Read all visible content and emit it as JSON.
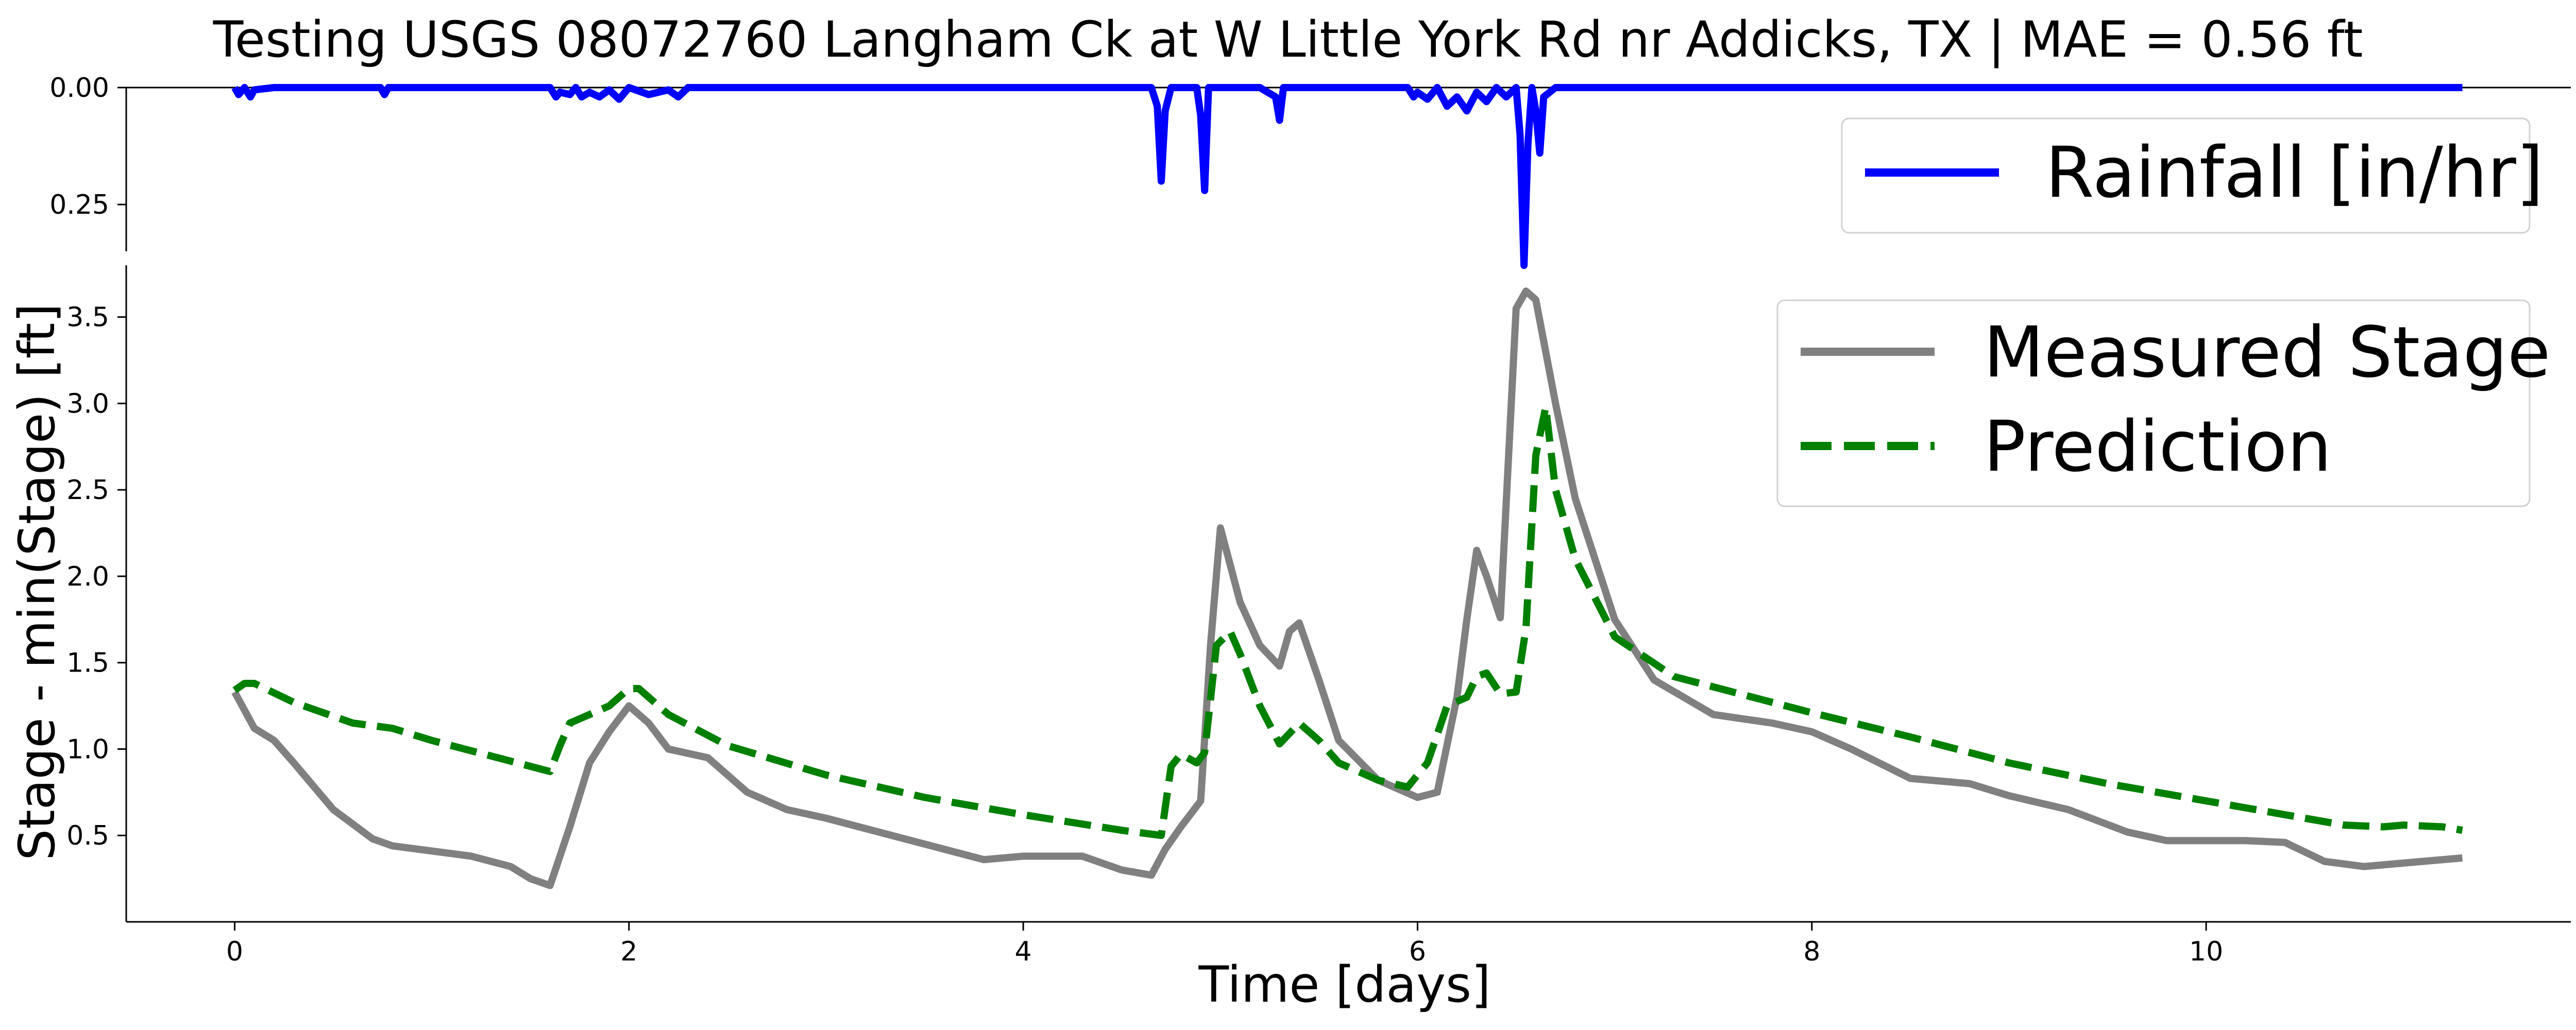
{
  "chart_data": {
    "title": "Testing USGS 08072760 Langham Ck at W Little York Rd nr Addicks, TX | MAE = 0.56 ft",
    "panels": [
      {
        "type": "line",
        "ylim": [
          0.35,
          0.0
        ],
        "inverted": true,
        "yticks": [
          0.0,
          0.25
        ],
        "ytick_labels": [
          "0.00",
          "0.25"
        ],
        "ylabel": "",
        "legend": "top-right",
        "series": [
          {
            "name": "Rainfall [in/hr]",
            "color": "#0000ff",
            "style": "solid",
            "x": [
              0.0,
              0.02,
              0.03,
              0.05,
              0.08,
              0.1,
              0.2,
              0.5,
              0.74,
              0.76,
              0.78,
              1.0,
              1.5,
              1.6,
              1.63,
              1.65,
              1.7,
              1.73,
              1.76,
              1.8,
              1.85,
              1.9,
              1.95,
              2.0,
              2.1,
              2.2,
              2.25,
              2.3,
              2.5,
              3.0,
              4.0,
              4.65,
              4.68,
              4.7,
              4.72,
              4.75,
              4.88,
              4.9,
              4.92,
              4.94,
              5.0,
              5.2,
              5.28,
              5.3,
              5.32,
              5.5,
              5.95,
              5.98,
              6.0,
              6.05,
              6.1,
              6.15,
              6.2,
              6.25,
              6.3,
              6.35,
              6.4,
              6.45,
              6.5,
              6.52,
              6.54,
              6.56,
              6.58,
              6.6,
              6.62,
              6.64,
              6.7,
              7.0,
              8.0,
              9.0,
              10.0,
              11.0,
              11.3
            ],
            "y": [
              0.0,
              0.015,
              0.01,
              0.0,
              0.02,
              0.005,
              0.0,
              0.0,
              0.0,
              0.015,
              0.0,
              0.0,
              0.0,
              0.0,
              0.02,
              0.01,
              0.015,
              0.0,
              0.02,
              0.01,
              0.02,
              0.005,
              0.025,
              0.0,
              0.015,
              0.005,
              0.02,
              0.0,
              0.0,
              0.0,
              0.0,
              0.0,
              0.04,
              0.2,
              0.05,
              0.0,
              0.0,
              0.06,
              0.22,
              0.0,
              0.0,
              0.0,
              0.02,
              0.07,
              0.0,
              0.0,
              0.0,
              0.02,
              0.01,
              0.025,
              0.0,
              0.04,
              0.02,
              0.05,
              0.01,
              0.03,
              0.0,
              0.02,
              0.0,
              0.1,
              0.38,
              0.12,
              0.0,
              0.05,
              0.14,
              0.02,
              0.0,
              0.0,
              0.0,
              0.0,
              0.0,
              0.0,
              0.0
            ]
          }
        ]
      },
      {
        "type": "line",
        "ylim": [
          0.0,
          3.8
        ],
        "yticks": [
          0.5,
          1.0,
          1.5,
          2.0,
          2.5,
          3.0,
          3.5
        ],
        "ytick_labels": [
          "0.5",
          "1.0",
          "1.5",
          "2.0",
          "2.5",
          "3.0",
          "3.5"
        ],
        "ylabel": "Stage - min(Stage) [ft]",
        "xlabel": "Time [days]",
        "xlim": [
          -0.55,
          11.85
        ],
        "xticks": [
          0,
          2,
          4,
          6,
          8,
          10
        ],
        "xtick_labels": [
          "0",
          "2",
          "4",
          "6",
          "8",
          "10"
        ],
        "legend": "top-right",
        "series": [
          {
            "name": "Measured Stage",
            "color": "#808080",
            "style": "solid",
            "x": [
              0.0,
              0.1,
              0.2,
              0.3,
              0.5,
              0.7,
              0.8,
              1.0,
              1.2,
              1.4,
              1.5,
              1.6,
              1.7,
              1.8,
              1.9,
              2.0,
              2.1,
              2.2,
              2.4,
              2.6,
              2.8,
              3.0,
              3.5,
              3.8,
              4.0,
              4.3,
              4.5,
              4.65,
              4.72,
              4.8,
              4.9,
              4.95,
              5.0,
              5.1,
              5.2,
              5.3,
              5.35,
              5.4,
              5.5,
              5.6,
              5.8,
              6.0,
              6.1,
              6.2,
              6.25,
              6.3,
              6.35,
              6.42,
              6.5,
              6.55,
              6.6,
              6.65,
              6.7,
              6.8,
              7.0,
              7.2,
              7.5,
              7.8,
              8.0,
              8.2,
              8.5,
              8.8,
              9.0,
              9.3,
              9.6,
              9.8,
              10.0,
              10.2,
              10.4,
              10.6,
              10.8,
              11.0,
              11.3
            ],
            "y": [
              1.33,
              1.12,
              1.05,
              0.92,
              0.65,
              0.48,
              0.44,
              0.41,
              0.38,
              0.32,
              0.25,
              0.21,
              0.55,
              0.92,
              1.1,
              1.25,
              1.15,
              1.0,
              0.95,
              0.75,
              0.65,
              0.6,
              0.45,
              0.36,
              0.38,
              0.38,
              0.3,
              0.27,
              0.42,
              0.55,
              0.7,
              1.6,
              2.28,
              1.85,
              1.6,
              1.48,
              1.68,
              1.73,
              1.4,
              1.05,
              0.82,
              0.72,
              0.75,
              1.3,
              1.75,
              2.15,
              2.0,
              1.76,
              3.55,
              3.65,
              3.6,
              3.3,
              3.0,
              2.45,
              1.75,
              1.4,
              1.2,
              1.15,
              1.1,
              1.0,
              0.83,
              0.8,
              0.73,
              0.65,
              0.52,
              0.47,
              0.47,
              0.47,
              0.46,
              0.35,
              0.32,
              0.34,
              0.37
            ]
          },
          {
            "name": "Prediction",
            "color": "#008000",
            "style": "dashed",
            "x": [
              0.0,
              0.05,
              0.1,
              0.3,
              0.6,
              0.8,
              1.0,
              1.3,
              1.6,
              1.65,
              1.7,
              1.8,
              1.9,
              2.0,
              2.05,
              2.1,
              2.2,
              2.5,
              3.0,
              3.5,
              4.0,
              4.5,
              4.7,
              4.75,
              4.8,
              4.88,
              4.92,
              4.98,
              5.05,
              5.1,
              5.2,
              5.3,
              5.4,
              5.5,
              5.6,
              5.8,
              5.95,
              6.05,
              6.15,
              6.25,
              6.3,
              6.35,
              6.42,
              6.5,
              6.55,
              6.6,
              6.65,
              6.7,
              6.8,
              7.0,
              7.3,
              7.5,
              8.0,
              8.5,
              9.0,
              9.5,
              10.0,
              10.5,
              10.7,
              10.9,
              11.0,
              11.2,
              11.3
            ],
            "y": [
              1.34,
              1.38,
              1.38,
              1.27,
              1.15,
              1.12,
              1.05,
              0.96,
              0.87,
              1.02,
              1.15,
              1.2,
              1.25,
              1.35,
              1.35,
              1.3,
              1.2,
              1.02,
              0.85,
              0.72,
              0.62,
              0.53,
              0.5,
              0.9,
              0.97,
              0.92,
              0.98,
              1.6,
              1.68,
              1.55,
              1.25,
              1.03,
              1.15,
              1.05,
              0.92,
              0.82,
              0.78,
              0.92,
              1.25,
              1.3,
              1.42,
              1.44,
              1.32,
              1.33,
              1.7,
              2.7,
              2.98,
              2.5,
              2.1,
              1.65,
              1.42,
              1.36,
              1.21,
              1.07,
              0.92,
              0.8,
              0.7,
              0.6,
              0.56,
              0.55,
              0.56,
              0.55,
              0.53
            ]
          }
        ]
      }
    ]
  }
}
